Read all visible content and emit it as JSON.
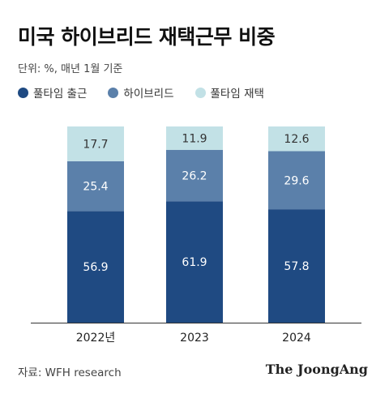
{
  "title": "미국 하이브리드 재택근무 비중",
  "unit_note": "단위: %, 매년 1월 기준",
  "source": "자료: WFH research",
  "brand": "The JoongAng",
  "colors": {
    "fulltime_office": "#1f4a82",
    "hybrid": "#5b80aa",
    "fulltime_remote": "#c2e1e6"
  },
  "chart_data": {
    "type": "bar",
    "stacked": true,
    "categories": [
      "2022년",
      "2023",
      "2024"
    ],
    "series": [
      {
        "name": "풀타임 출근",
        "values": [
          56.9,
          61.9,
          57.8
        ],
        "color": "#1f4a82"
      },
      {
        "name": "하이브리드",
        "values": [
          25.4,
          26.2,
          29.6
        ],
        "color": "#5b80aa"
      },
      {
        "name": "풀타임 재택",
        "values": [
          17.7,
          11.9,
          12.6
        ],
        "color": "#c2e1e6"
      }
    ],
    "ylim": [
      0,
      100
    ],
    "legend_position": "top-left",
    "grid": false
  }
}
